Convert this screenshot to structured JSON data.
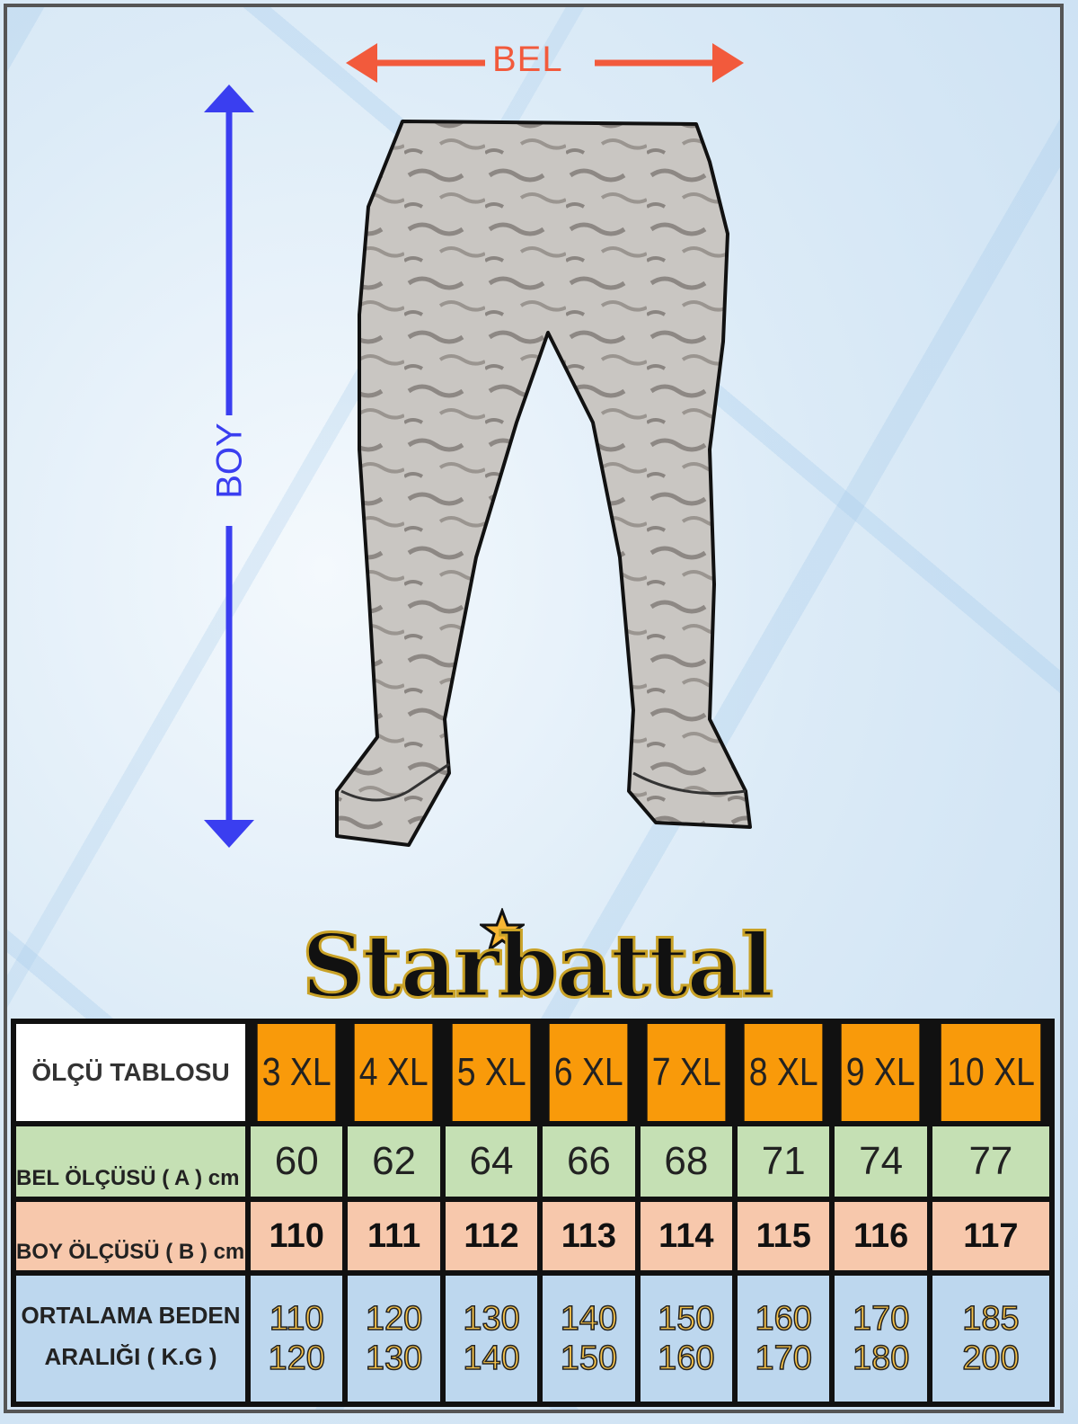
{
  "diagram": {
    "waist_label": "BEL",
    "length_label": "BOY",
    "colors": {
      "waist_arrow": "#f25a3c",
      "length_arrow": "#3a3ef0"
    },
    "illustration": "camouflage-cargo-pants"
  },
  "brand": {
    "logo_text": "Starbattal",
    "star_color": "#f8b733"
  },
  "size_table": {
    "title": "ÖLÇÜ TABLOSU",
    "sizes": [
      "3 XL",
      "4 XL",
      "5 XL",
      "6 XL",
      "7 XL",
      "8 XL",
      "9 XL",
      "10 XL"
    ],
    "rows": [
      {
        "label": "BEL ÖLÇÜSÜ ( A ) cm",
        "values": [
          "60",
          "62",
          "64",
          "66",
          "68",
          "71",
          "74",
          "77"
        ]
      },
      {
        "label": "BOY ÖLÇÜSÜ ( B ) cm",
        "values": [
          "110",
          "111",
          "112",
          "113",
          "114",
          "115",
          "116",
          "117"
        ]
      }
    ],
    "weight_row": {
      "label_line1": "ORTALAMA BEDEN",
      "label_line2": "ARALIĞI (  K.G )",
      "ranges": [
        [
          "110",
          "120"
        ],
        [
          "120",
          "130"
        ],
        [
          "130",
          "140"
        ],
        [
          "140",
          "150"
        ],
        [
          "150",
          "160"
        ],
        [
          "160",
          "170"
        ],
        [
          "170",
          "180"
        ],
        [
          "185",
          "200"
        ]
      ]
    },
    "colors": {
      "header": "#f99a0a",
      "bel": "#c5e0b4",
      "boy": "#f7c8ac",
      "kg": "#bdd7ee"
    }
  }
}
